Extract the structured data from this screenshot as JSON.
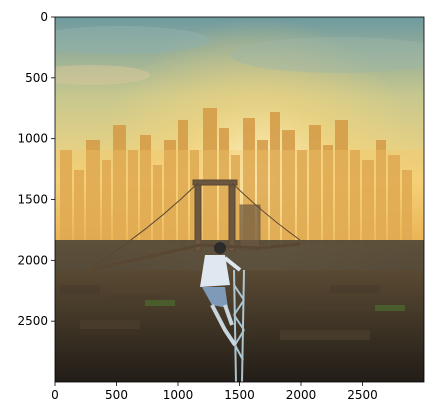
{
  "image_panel": {
    "description_icon": "city-skyline-photo-icon",
    "x_ticks": [
      {
        "value": 0,
        "label": "0"
      },
      {
        "value": 500,
        "label": "500"
      },
      {
        "value": 1000,
        "label": "1000"
      },
      {
        "value": 1500,
        "label": "1500"
      },
      {
        "value": 2000,
        "label": "2000"
      },
      {
        "value": 2500,
        "label": "2500"
      }
    ],
    "y_ticks": [
      {
        "value": 0,
        "label": "0"
      },
      {
        "value": 500,
        "label": "500"
      },
      {
        "value": 1000,
        "label": "1000"
      },
      {
        "value": 1500,
        "label": "1500"
      },
      {
        "value": 2000,
        "label": "2000"
      },
      {
        "value": 2500,
        "label": "2500"
      }
    ],
    "x_range": [
      0,
      3000
    ],
    "y_range": [
      0,
      3000
    ],
    "colors": {
      "sky_top": "#7da3a6",
      "sky_glow": "#f5d98a",
      "sun_core": "#fff3c4",
      "haze": "#e9b04a",
      "buildings": "#c98a3c",
      "buildings_dark": "#8a5a2a",
      "river": "#4f4a40",
      "foreground": "#3a3328",
      "bridge": "#6b5640"
    }
  }
}
